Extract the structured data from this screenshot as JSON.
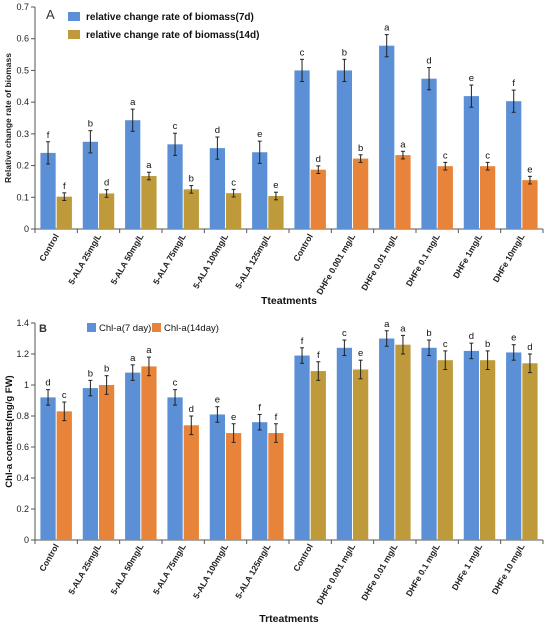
{
  "chart_data": [
    {
      "type": "bar",
      "panel_label": "A",
      "xlabel": "Tteatments",
      "ylabel": "Relative change rate of biomass",
      "ylim": [
        0,
        0.7
      ],
      "yticks": [
        "0",
        "0.1",
        "0.2",
        "0.3",
        "0.4",
        "0.5",
        "0.6",
        "0.7"
      ],
      "grid": false,
      "legend_position": "top-left",
      "categories": [
        "Control",
        "5-ALA 25mg/L",
        "5-ALA 50mg/L",
        "5-ALA 75mg/L",
        "5-ALA 100mg/L",
        "5-ALA 125mg/L",
        "Control",
        "DHFe 0.001 mg/L",
        "DHFe 0.01 mg/L",
        "DHFe 0.1 mg/L",
        "DHFe 1mg/L",
        "DHFe 10mg/L"
      ],
      "series": [
        {
          "name": "relative change rate of biomass(7d)",
          "color": "#5B8FD6",
          "values": [
            0.24,
            0.275,
            0.343,
            0.267,
            0.255,
            0.242,
            0.5,
            0.5,
            0.578,
            0.474,
            0.419,
            0.403
          ],
          "errors": [
            0.035,
            0.035,
            0.035,
            0.035,
            0.035,
            0.035,
            0.035,
            0.035,
            0.035,
            0.035,
            0.035,
            0.035
          ],
          "labels": [
            "f",
            "b",
            "a",
            "c",
            "d",
            "e",
            "c",
            "b",
            "a",
            "d",
            "e",
            "f"
          ]
        },
        {
          "name": "relative change rate of biomass(14d)",
          "color_first": "#BF9A3A",
          "color_second": "#E8833A",
          "values": [
            0.102,
            0.112,
            0.167,
            0.125,
            0.113,
            0.104,
            0.187,
            0.222,
            0.233,
            0.198,
            0.198,
            0.154
          ],
          "errors": [
            0.012,
            0.012,
            0.012,
            0.012,
            0.012,
            0.012,
            0.012,
            0.012,
            0.012,
            0.012,
            0.012,
            0.012
          ],
          "labels": [
            "f",
            "d",
            "a",
            "b",
            "c",
            "e",
            "d",
            "b",
            "a",
            "c",
            "c",
            "e"
          ]
        }
      ]
    },
    {
      "type": "bar",
      "panel_label": "B",
      "xlabel": "Trteatments",
      "ylabel": "Chl-a contents(mg/g FW)",
      "ylim": [
        0,
        1.4
      ],
      "yticks": [
        "0",
        "0.2",
        "0.4",
        "0.6",
        "0.8",
        "1",
        "1.2",
        "1.4"
      ],
      "grid": false,
      "legend_position": "top-left",
      "categories": [
        "Control",
        "5-ALA 25mg/L",
        "5-ALA 50mg/L",
        "5-ALA 75mg/L",
        "5-ALA 100mg/L",
        "5-ALA 125mg/L",
        "Control",
        "DHFe 0.001 mg/L",
        "DHFe 0.01 mg/L",
        "DHFe 0.1 mg/L",
        "DHFe 1 mg/L",
        "DHFe 10 mg/L"
      ],
      "series": [
        {
          "name": "Chl-a(7 day)",
          "color": "#5B8FD6",
          "values": [
            0.92,
            0.98,
            1.08,
            0.92,
            0.81,
            0.76,
            1.19,
            1.24,
            1.3,
            1.24,
            1.22,
            1.21
          ],
          "errors": [
            0.05,
            0.05,
            0.05,
            0.05,
            0.05,
            0.05,
            0.05,
            0.05,
            0.05,
            0.05,
            0.05,
            0.05
          ],
          "labels": [
            "d",
            "b",
            "a",
            "c",
            "e",
            "f",
            "f",
            "c",
            "a",
            "b",
            "d",
            "e"
          ]
        },
        {
          "name": "Chl-a(14day)",
          "color_first": "#E8833A",
          "color_second": "#BF9A3A",
          "values": [
            0.83,
            1.0,
            1.12,
            0.74,
            0.69,
            0.69,
            1.09,
            1.1,
            1.26,
            1.16,
            1.16,
            1.14
          ],
          "errors": [
            0.06,
            0.06,
            0.06,
            0.06,
            0.06,
            0.06,
            0.06,
            0.06,
            0.06,
            0.06,
            0.06,
            0.06
          ],
          "labels": [
            "c",
            "b",
            "a",
            "d",
            "e",
            "f",
            "f",
            "e",
            "a",
            "c",
            "b",
            "d"
          ]
        }
      ]
    }
  ]
}
